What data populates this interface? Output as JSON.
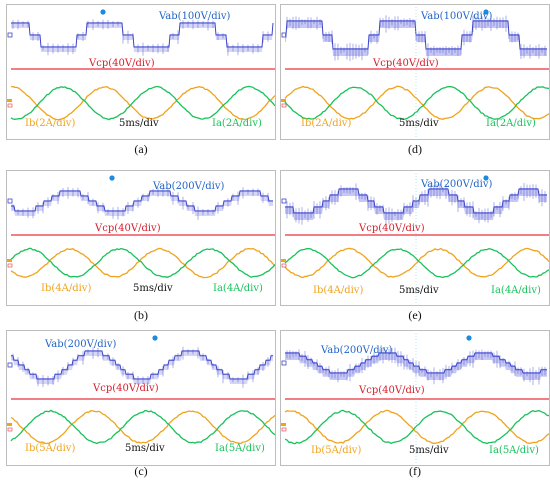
{
  "colors": {
    "vab": "#3d46c8",
    "vab_fill": "#b4b4f0",
    "vcp": "#e8313a",
    "ib": "#f0a31c",
    "ia": "#19c25a",
    "cursor_dot": "#1a8be0",
    "text_dark": "#111111",
    "text_vab": "#1f63c9",
    "text_vcp": "#d81c2a"
  },
  "panels": [
    {
      "id": "a",
      "caption": "(a)",
      "vab_label": "Vab(100V/div)",
      "vcp_label": "Vcp(40V/div)",
      "ib_label": "Ib(2A/div)",
      "ia_label": "Ia(2A/div)",
      "time_label": "5ms/div",
      "vab_levels": 3,
      "vab_level_shape": "bipolar-wide"
    },
    {
      "id": "d",
      "caption": "(d)",
      "vab_label": "Vab(100V/div)",
      "vcp_label": "Vcp(40V/div)",
      "ib_label": "Ib(2A/div)",
      "ia_label": "Ia(2A/div)",
      "time_label": "5ms/div",
      "vab_levels": 3,
      "vab_level_shape": "bipolar-wide-noisy"
    },
    {
      "id": "b",
      "caption": "(b)",
      "vab_label": "Vab(200V/div)",
      "vcp_label": "Vcp(40V/div)",
      "ib_label": "Ib(4A/div)",
      "ia_label": "Ia(4A/div)",
      "time_label": "5ms/div",
      "vab_levels": 5,
      "vab_level_shape": "staircase"
    },
    {
      "id": "e",
      "caption": "(e)",
      "vab_label": "Vab(200V/div)",
      "vcp_label": "Vcp(40V/div)",
      "ib_label": "Ib(4A/div)",
      "ia_label": "Ia(4A/div)",
      "time_label": "5ms/div",
      "vab_levels": 5,
      "vab_level_shape": "staircase-noisy"
    },
    {
      "id": "c",
      "caption": "(c)",
      "vab_label": "Vab(200V/div)",
      "vcp_label": "Vcp(40V/div)",
      "ib_label": "Ib(5A/div)",
      "ia_label": "Ia(5A/div)",
      "time_label": "5ms/div",
      "vab_levels": 7,
      "vab_level_shape": "staircase"
    },
    {
      "id": "f",
      "caption": "(f)",
      "vab_label": "Vab(200V/div)",
      "vcp_label": "Vcp(40V/div)",
      "ib_label": "Ib(5A/div)",
      "ia_label": "Ia(5A/div)",
      "time_label": "5ms/div",
      "vab_levels": 7,
      "vab_level_shape": "staircase-noisy"
    }
  ]
}
